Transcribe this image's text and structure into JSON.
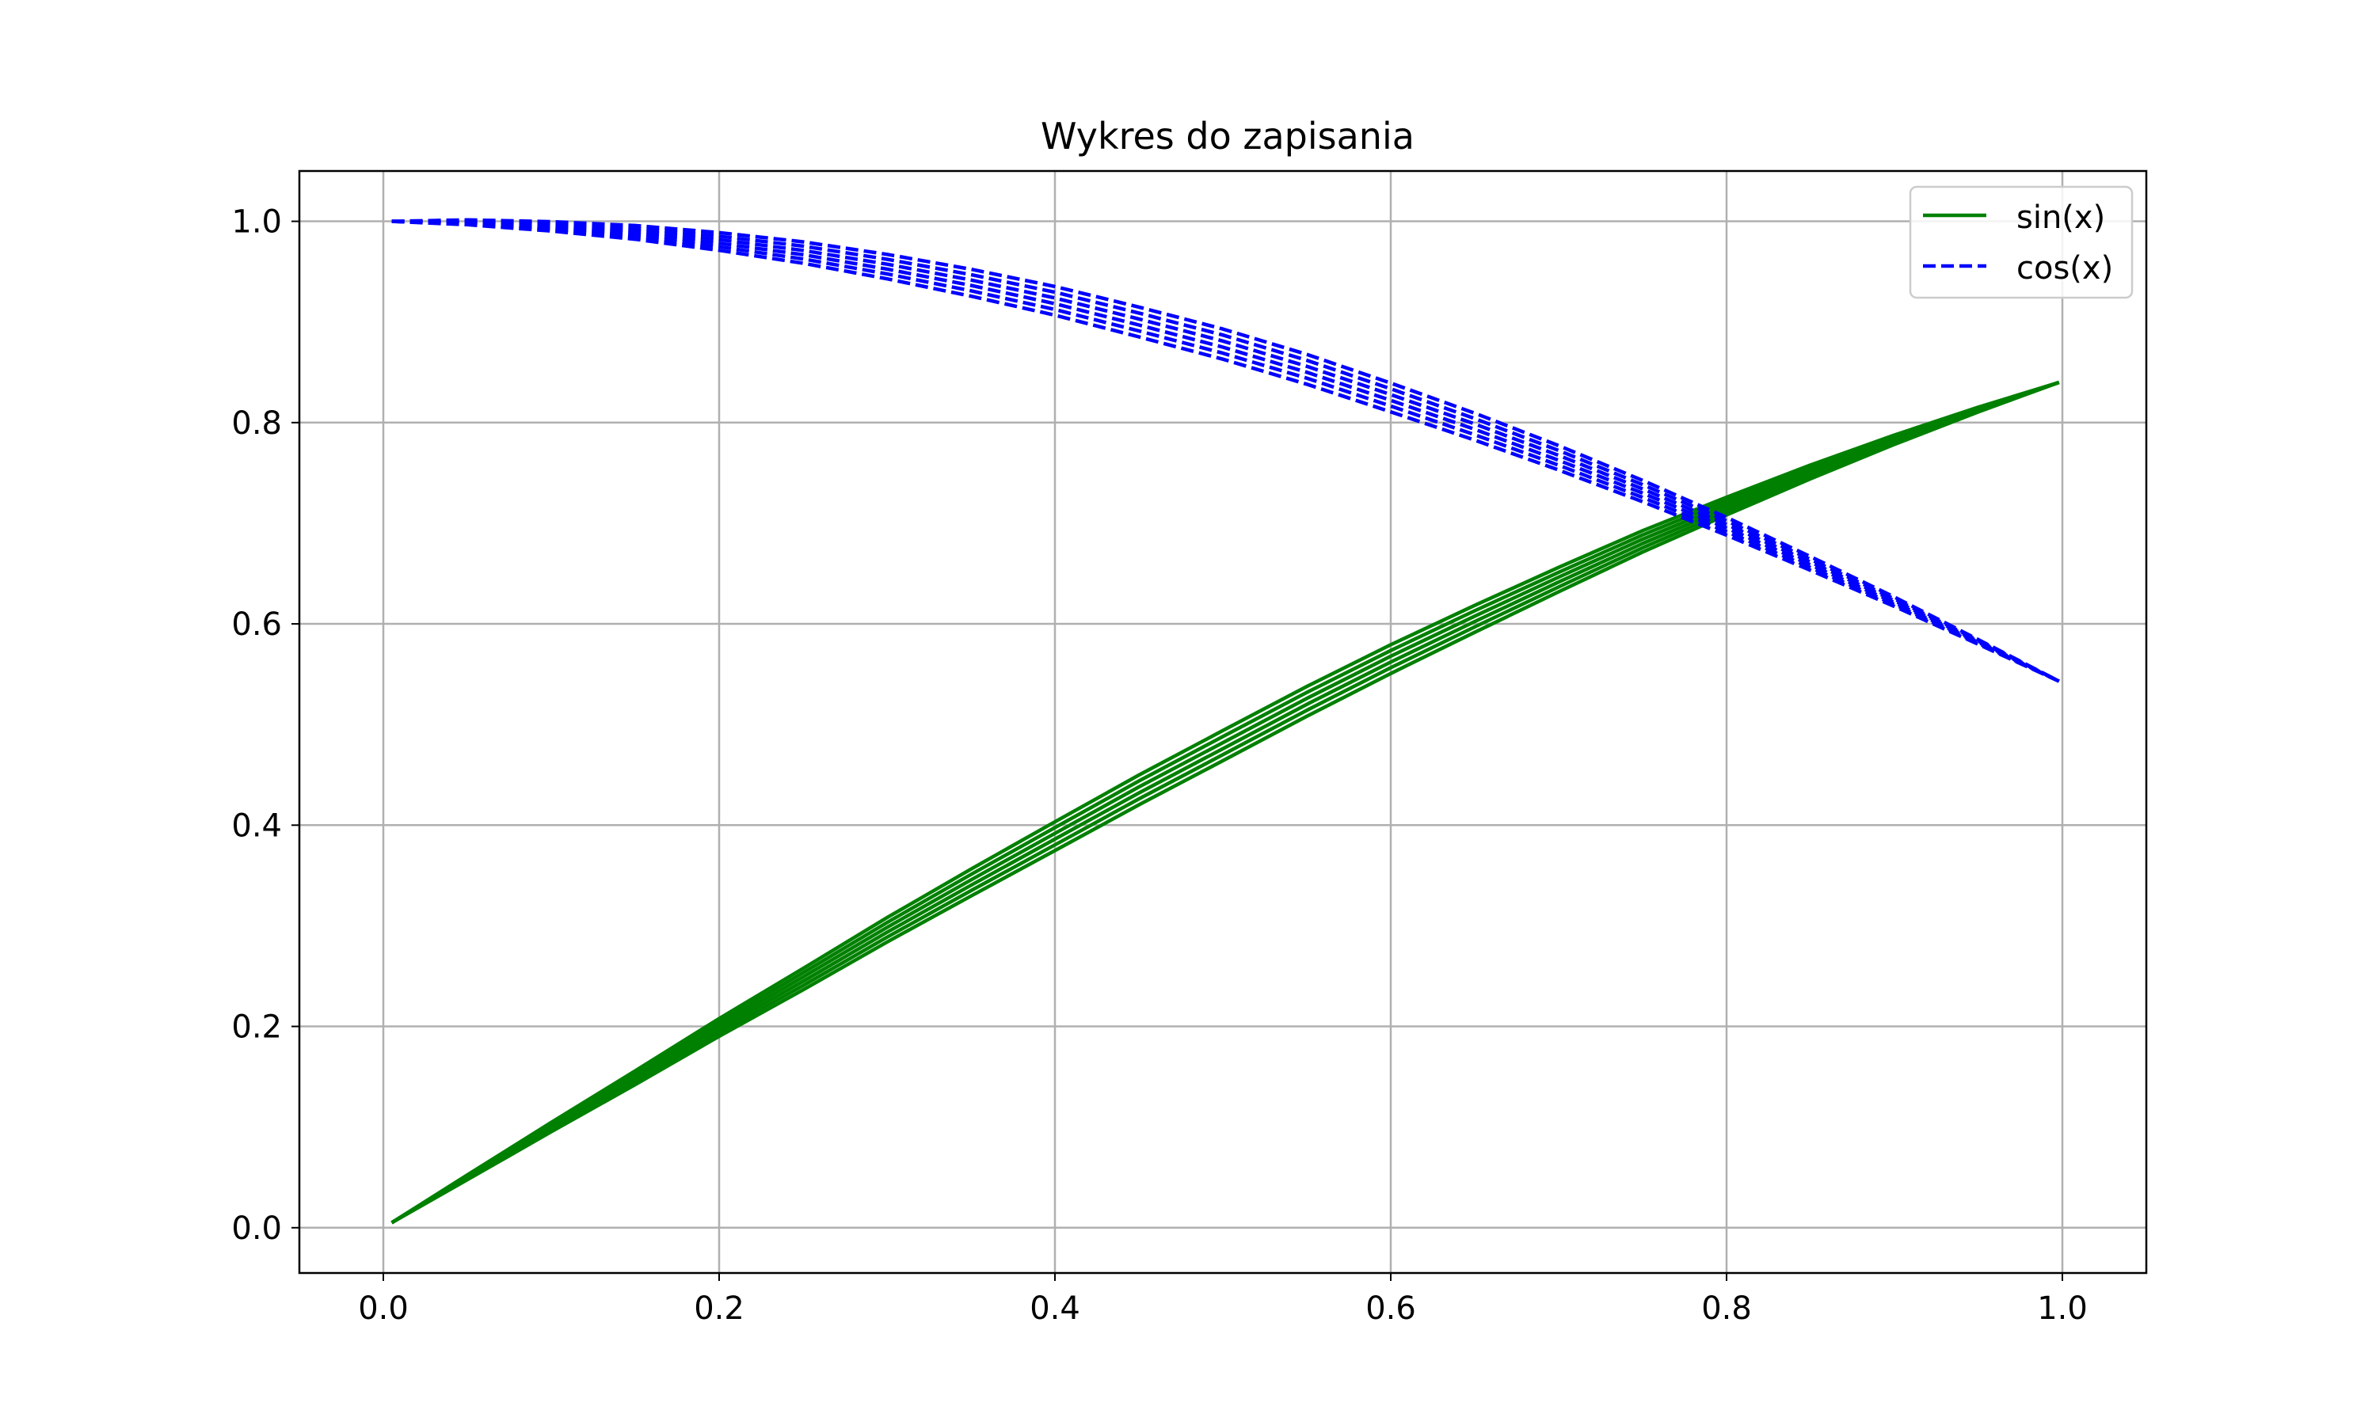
{
  "chart_data": {
    "type": "line",
    "title": "Wykres do zapisania",
    "xlabel": "",
    "ylabel": "",
    "xlim": [
      -0.05,
      1.05
    ],
    "ylim": [
      -0.045,
      1.05
    ],
    "xticks": [
      0.0,
      0.2,
      0.4,
      0.6,
      0.8,
      1.0
    ],
    "yticks": [
      0.0,
      0.2,
      0.4,
      0.6,
      0.8,
      1.0
    ],
    "xtick_labels": [
      "0.0",
      "0.2",
      "0.4",
      "0.6",
      "0.8",
      "1.0"
    ],
    "ytick_labels": [
      "0.0",
      "0.2",
      "0.4",
      "0.6",
      "0.8",
      "1.0"
    ],
    "grid": true,
    "legend_position": "top-right",
    "x": [
      0.005,
      0.05,
      0.1,
      0.15,
      0.2,
      0.25,
      0.3,
      0.35,
      0.4,
      0.45,
      0.5,
      0.55,
      0.6,
      0.65,
      0.7,
      0.75,
      0.8,
      0.85,
      0.9,
      0.95,
      0.998
    ],
    "series": [
      {
        "name": "sin(x)",
        "color": "#008000",
        "style": "solid",
        "values": [
          0.005,
          0.05,
          0.1,
          0.149,
          0.199,
          0.247,
          0.296,
          0.343,
          0.389,
          0.435,
          0.479,
          0.523,
          0.565,
          0.605,
          0.644,
          0.682,
          0.717,
          0.751,
          0.783,
          0.813,
          0.84
        ]
      },
      {
        "name": "cos(x)",
        "color": "#0000ff",
        "style": "dashed",
        "values": [
          1.0,
          0.999,
          0.995,
          0.989,
          0.98,
          0.969,
          0.955,
          0.939,
          0.921,
          0.9,
          0.878,
          0.853,
          0.825,
          0.796,
          0.765,
          0.732,
          0.697,
          0.66,
          0.622,
          0.582,
          0.543
        ]
      }
    ]
  }
}
